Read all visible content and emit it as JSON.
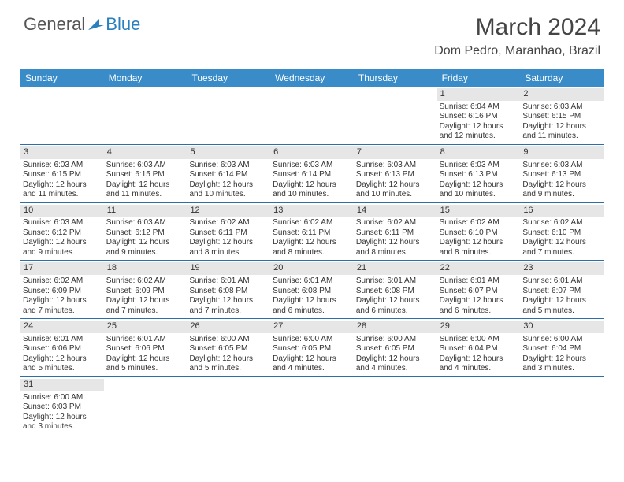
{
  "logo": {
    "text1": "General",
    "text2": "Blue"
  },
  "title": "March 2024",
  "location": "Dom Pedro, Maranhao, Brazil",
  "day_names": [
    "Sunday",
    "Monday",
    "Tuesday",
    "Wednesday",
    "Thursday",
    "Friday",
    "Saturday"
  ],
  "colors": {
    "header_bg": "#3a8cc9",
    "header_text": "#ffffff",
    "daynum_bg": "#e6e6e6",
    "row_border": "#2a6fa8",
    "title_color": "#444444",
    "body_text": "#333333",
    "logo_general": "#555555",
    "logo_blue": "#2a7fbf"
  },
  "fonts": {
    "title_size": 30,
    "location_size": 16,
    "header_size": 12,
    "cell_size": 10,
    "logo_size": 22
  },
  "weeks": [
    [
      {
        "n": "",
        "empty": true
      },
      {
        "n": "",
        "empty": true
      },
      {
        "n": "",
        "empty": true
      },
      {
        "n": "",
        "empty": true
      },
      {
        "n": "",
        "empty": true
      },
      {
        "n": "1",
        "sr": "Sunrise: 6:04 AM",
        "ss": "Sunset: 6:16 PM",
        "dl1": "Daylight: 12 hours",
        "dl2": "and 12 minutes."
      },
      {
        "n": "2",
        "sr": "Sunrise: 6:03 AM",
        "ss": "Sunset: 6:15 PM",
        "dl1": "Daylight: 12 hours",
        "dl2": "and 11 minutes."
      }
    ],
    [
      {
        "n": "3",
        "sr": "Sunrise: 6:03 AM",
        "ss": "Sunset: 6:15 PM",
        "dl1": "Daylight: 12 hours",
        "dl2": "and 11 minutes."
      },
      {
        "n": "4",
        "sr": "Sunrise: 6:03 AM",
        "ss": "Sunset: 6:15 PM",
        "dl1": "Daylight: 12 hours",
        "dl2": "and 11 minutes."
      },
      {
        "n": "5",
        "sr": "Sunrise: 6:03 AM",
        "ss": "Sunset: 6:14 PM",
        "dl1": "Daylight: 12 hours",
        "dl2": "and 10 minutes."
      },
      {
        "n": "6",
        "sr": "Sunrise: 6:03 AM",
        "ss": "Sunset: 6:14 PM",
        "dl1": "Daylight: 12 hours",
        "dl2": "and 10 minutes."
      },
      {
        "n": "7",
        "sr": "Sunrise: 6:03 AM",
        "ss": "Sunset: 6:13 PM",
        "dl1": "Daylight: 12 hours",
        "dl2": "and 10 minutes."
      },
      {
        "n": "8",
        "sr": "Sunrise: 6:03 AM",
        "ss": "Sunset: 6:13 PM",
        "dl1": "Daylight: 12 hours",
        "dl2": "and 10 minutes."
      },
      {
        "n": "9",
        "sr": "Sunrise: 6:03 AM",
        "ss": "Sunset: 6:13 PM",
        "dl1": "Daylight: 12 hours",
        "dl2": "and 9 minutes."
      }
    ],
    [
      {
        "n": "10",
        "sr": "Sunrise: 6:03 AM",
        "ss": "Sunset: 6:12 PM",
        "dl1": "Daylight: 12 hours",
        "dl2": "and 9 minutes."
      },
      {
        "n": "11",
        "sr": "Sunrise: 6:03 AM",
        "ss": "Sunset: 6:12 PM",
        "dl1": "Daylight: 12 hours",
        "dl2": "and 9 minutes."
      },
      {
        "n": "12",
        "sr": "Sunrise: 6:02 AM",
        "ss": "Sunset: 6:11 PM",
        "dl1": "Daylight: 12 hours",
        "dl2": "and 8 minutes."
      },
      {
        "n": "13",
        "sr": "Sunrise: 6:02 AM",
        "ss": "Sunset: 6:11 PM",
        "dl1": "Daylight: 12 hours",
        "dl2": "and 8 minutes."
      },
      {
        "n": "14",
        "sr": "Sunrise: 6:02 AM",
        "ss": "Sunset: 6:11 PM",
        "dl1": "Daylight: 12 hours",
        "dl2": "and 8 minutes."
      },
      {
        "n": "15",
        "sr": "Sunrise: 6:02 AM",
        "ss": "Sunset: 6:10 PM",
        "dl1": "Daylight: 12 hours",
        "dl2": "and 8 minutes."
      },
      {
        "n": "16",
        "sr": "Sunrise: 6:02 AM",
        "ss": "Sunset: 6:10 PM",
        "dl1": "Daylight: 12 hours",
        "dl2": "and 7 minutes."
      }
    ],
    [
      {
        "n": "17",
        "sr": "Sunrise: 6:02 AM",
        "ss": "Sunset: 6:09 PM",
        "dl1": "Daylight: 12 hours",
        "dl2": "and 7 minutes."
      },
      {
        "n": "18",
        "sr": "Sunrise: 6:02 AM",
        "ss": "Sunset: 6:09 PM",
        "dl1": "Daylight: 12 hours",
        "dl2": "and 7 minutes."
      },
      {
        "n": "19",
        "sr": "Sunrise: 6:01 AM",
        "ss": "Sunset: 6:08 PM",
        "dl1": "Daylight: 12 hours",
        "dl2": "and 7 minutes."
      },
      {
        "n": "20",
        "sr": "Sunrise: 6:01 AM",
        "ss": "Sunset: 6:08 PM",
        "dl1": "Daylight: 12 hours",
        "dl2": "and 6 minutes."
      },
      {
        "n": "21",
        "sr": "Sunrise: 6:01 AM",
        "ss": "Sunset: 6:08 PM",
        "dl1": "Daylight: 12 hours",
        "dl2": "and 6 minutes."
      },
      {
        "n": "22",
        "sr": "Sunrise: 6:01 AM",
        "ss": "Sunset: 6:07 PM",
        "dl1": "Daylight: 12 hours",
        "dl2": "and 6 minutes."
      },
      {
        "n": "23",
        "sr": "Sunrise: 6:01 AM",
        "ss": "Sunset: 6:07 PM",
        "dl1": "Daylight: 12 hours",
        "dl2": "and 5 minutes."
      }
    ],
    [
      {
        "n": "24",
        "sr": "Sunrise: 6:01 AM",
        "ss": "Sunset: 6:06 PM",
        "dl1": "Daylight: 12 hours",
        "dl2": "and 5 minutes."
      },
      {
        "n": "25",
        "sr": "Sunrise: 6:01 AM",
        "ss": "Sunset: 6:06 PM",
        "dl1": "Daylight: 12 hours",
        "dl2": "and 5 minutes."
      },
      {
        "n": "26",
        "sr": "Sunrise: 6:00 AM",
        "ss": "Sunset: 6:05 PM",
        "dl1": "Daylight: 12 hours",
        "dl2": "and 5 minutes."
      },
      {
        "n": "27",
        "sr": "Sunrise: 6:00 AM",
        "ss": "Sunset: 6:05 PM",
        "dl1": "Daylight: 12 hours",
        "dl2": "and 4 minutes."
      },
      {
        "n": "28",
        "sr": "Sunrise: 6:00 AM",
        "ss": "Sunset: 6:05 PM",
        "dl1": "Daylight: 12 hours",
        "dl2": "and 4 minutes."
      },
      {
        "n": "29",
        "sr": "Sunrise: 6:00 AM",
        "ss": "Sunset: 6:04 PM",
        "dl1": "Daylight: 12 hours",
        "dl2": "and 4 minutes."
      },
      {
        "n": "30",
        "sr": "Sunrise: 6:00 AM",
        "ss": "Sunset: 6:04 PM",
        "dl1": "Daylight: 12 hours",
        "dl2": "and 3 minutes."
      }
    ],
    [
      {
        "n": "31",
        "sr": "Sunrise: 6:00 AM",
        "ss": "Sunset: 6:03 PM",
        "dl1": "Daylight: 12 hours",
        "dl2": "and 3 minutes."
      },
      {
        "n": "",
        "empty": true
      },
      {
        "n": "",
        "empty": true
      },
      {
        "n": "",
        "empty": true
      },
      {
        "n": "",
        "empty": true
      },
      {
        "n": "",
        "empty": true
      },
      {
        "n": "",
        "empty": true
      }
    ]
  ]
}
